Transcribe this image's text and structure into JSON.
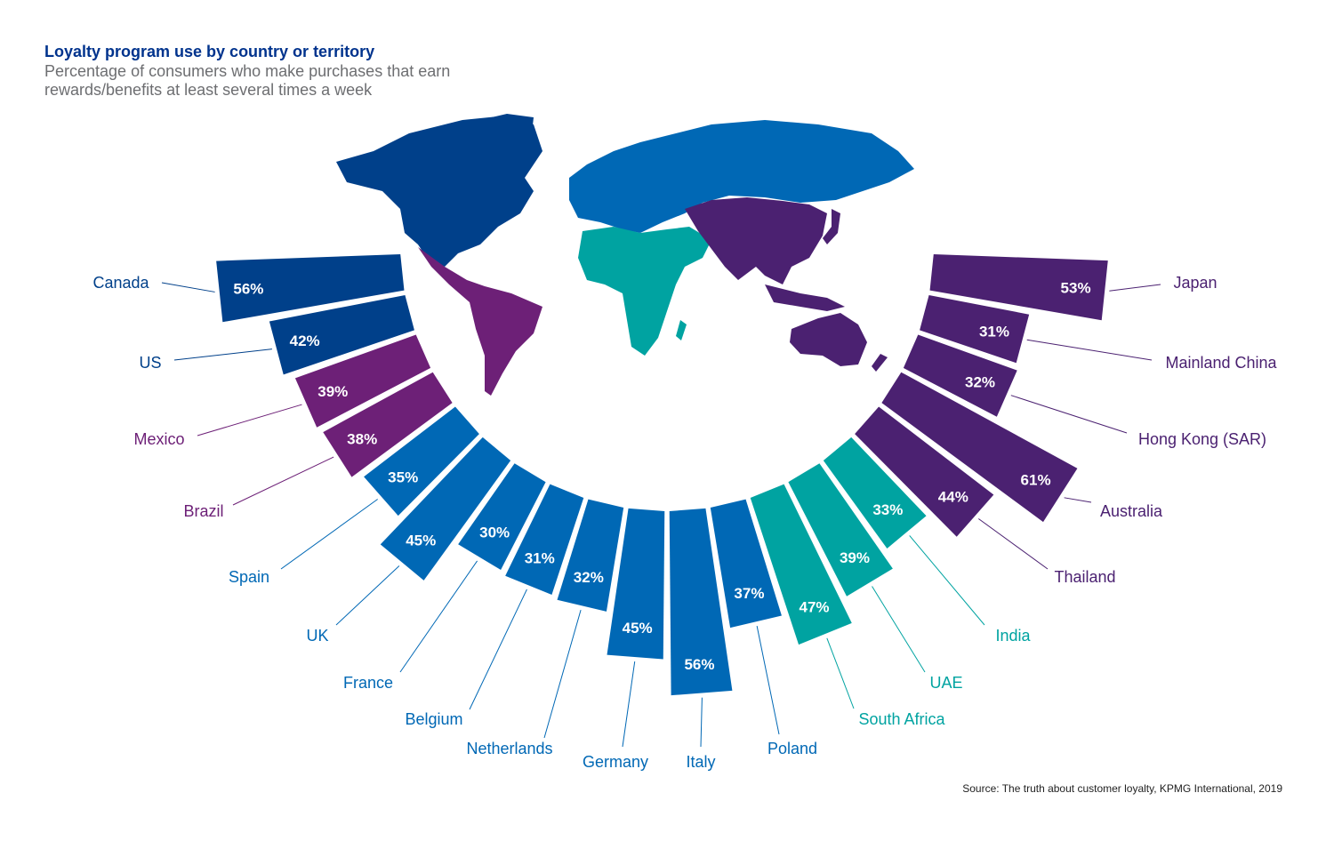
{
  "chart_data": {
    "type": "bar",
    "layout": "radial-semicircle",
    "title": "Loyalty program use by country or territory",
    "subtitle": "Percentage of consumers who make purchases that earn rewards/benefits at least several times a week",
    "source": "Source: The truth about customer loyalty, KPMG International, 2019",
    "unit": "%",
    "region_colors": {
      "north_america": "#00408a",
      "latin_america": "#6d2077",
      "europe": "#0068b5",
      "africa_middle_east_india": "#00a3a1",
      "asia_pacific": "#4b2171"
    },
    "categories": [
      "Canada",
      "US",
      "Mexico",
      "Brazil",
      "Spain",
      "UK",
      "France",
      "Belgium",
      "Netherlands",
      "Germany",
      "Italy",
      "Poland",
      "South Africa",
      "UAE",
      "India",
      "Thailand",
      "Australia",
      "Hong Kong (SAR)",
      "Mainland China",
      "Japan"
    ],
    "values": [
      56,
      42,
      39,
      38,
      35,
      45,
      30,
      31,
      32,
      45,
      56,
      37,
      47,
      39,
      33,
      44,
      61,
      32,
      31,
      53
    ],
    "labels": [
      "56%",
      "42%",
      "39%",
      "38%",
      "35%",
      "45%",
      "30%",
      "31%",
      "32%",
      "45%",
      "56%",
      "37%",
      "47%",
      "39%",
      "33%",
      "44%",
      "61%",
      "32%",
      "31%",
      "53%"
    ],
    "regions": [
      "north_america",
      "north_america",
      "latin_america",
      "latin_america",
      "europe",
      "europe",
      "europe",
      "europe",
      "europe",
      "europe",
      "europe",
      "europe",
      "africa_middle_east_india",
      "africa_middle_east_india",
      "africa_middle_east_india",
      "asia_pacific",
      "asia_pacific",
      "asia_pacific",
      "asia_pacific",
      "asia_pacific"
    ]
  }
}
